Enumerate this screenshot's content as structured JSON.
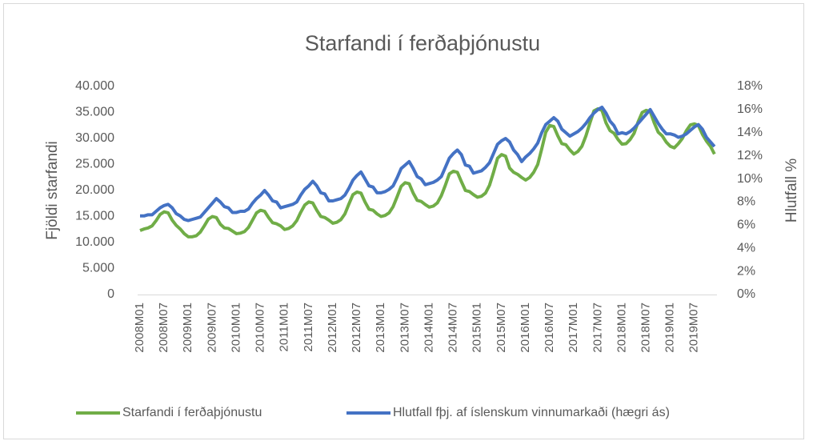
{
  "chart_data": {
    "type": "line",
    "title": "Starfandi í ferðaþjónustu",
    "y_label": "Fjöldi starfandi",
    "y2_label": "Hlutfall %",
    "categories": [
      "2008M01",
      null,
      null,
      null,
      null,
      null,
      "2008M07",
      null,
      null,
      null,
      null,
      null,
      "2009M01",
      null,
      null,
      null,
      null,
      null,
      "2009M07",
      null,
      null,
      null,
      null,
      null,
      "2010M01",
      null,
      null,
      null,
      null,
      null,
      "2010M07",
      null,
      null,
      null,
      null,
      null,
      "2011M01",
      null,
      null,
      null,
      null,
      null,
      "2011M07",
      null,
      null,
      null,
      null,
      null,
      "2012M01",
      null,
      null,
      null,
      null,
      null,
      "2012M07",
      null,
      null,
      null,
      null,
      null,
      "2013M01",
      null,
      null,
      null,
      null,
      null,
      "2013M07",
      null,
      null,
      null,
      null,
      null,
      "2014M01",
      null,
      null,
      null,
      null,
      null,
      "2014M07",
      null,
      null,
      null,
      null,
      null,
      "2015M01",
      null,
      null,
      null,
      null,
      null,
      "2015M07",
      null,
      null,
      null,
      null,
      null,
      "2016M01",
      null,
      null,
      null,
      null,
      null,
      "2016M07",
      null,
      null,
      null,
      null,
      null,
      "2017M01",
      null,
      null,
      null,
      null,
      null,
      "2017M07",
      null,
      null,
      null,
      null,
      null,
      "2018M01",
      null,
      null,
      null,
      null,
      null,
      "2018M07",
      null,
      null,
      null,
      null,
      null,
      "2019M01",
      null,
      null,
      null,
      null,
      null,
      "2019M07",
      null,
      null,
      null,
      null,
      null
    ],
    "series": [
      {
        "name": "Starfandi í ferðaþjónustu",
        "color": "#70ad47",
        "axis": "y",
        "values": [
          12300,
          12600,
          12800,
          13200,
          14200,
          15400,
          15900,
          15700,
          14300,
          13300,
          12600,
          11700,
          11100,
          11100,
          11300,
          12000,
          13200,
          14500,
          15000,
          14800,
          13500,
          12800,
          12700,
          12200,
          11700,
          11800,
          12100,
          12900,
          14300,
          15700,
          16200,
          16000,
          14800,
          13800,
          13600,
          13200,
          12500,
          12700,
          13200,
          14200,
          15800,
          17200,
          17800,
          17600,
          16200,
          15000,
          14800,
          14300,
          13700,
          13900,
          14400,
          15500,
          17400,
          19200,
          19700,
          19500,
          17800,
          16400,
          16200,
          15500,
          15000,
          15200,
          15700,
          16900,
          18800,
          20800,
          21500,
          21300,
          19500,
          18100,
          17900,
          17300,
          16800,
          17000,
          17600,
          19000,
          21000,
          23200,
          23700,
          23500,
          21700,
          20000,
          19800,
          19200,
          18700,
          18900,
          19500,
          21000,
          23500,
          26200,
          26900,
          26600,
          24300,
          23500,
          23100,
          22500,
          22000,
          22500,
          23500,
          25000,
          28000,
          31200,
          32500,
          32300,
          30500,
          29000,
          28800,
          27800,
          27000,
          27500,
          28500,
          30500,
          33000,
          35300,
          35700,
          35400,
          33000,
          31500,
          31000,
          29800,
          28900,
          29000,
          29800,
          31000,
          33200,
          35000,
          35400,
          35200,
          33000,
          31200,
          30500,
          29300,
          28500,
          28200,
          29000,
          30000,
          31500,
          32600,
          32800,
          32500,
          30800,
          29500,
          28500,
          27000
        ]
      },
      {
        "name": "Hlutfall fþj. af íslenskum vinnumarkaði (hægri ás)",
        "color": "#4472c4",
        "axis": "y2",
        "values": [
          6.8,
          6.8,
          6.9,
          6.9,
          7.2,
          7.5,
          7.7,
          7.8,
          7.5,
          7.0,
          6.8,
          6.5,
          6.4,
          6.5,
          6.6,
          6.7,
          7.1,
          7.5,
          7.9,
          8.3,
          8.0,
          7.6,
          7.5,
          7.1,
          7.1,
          7.2,
          7.2,
          7.4,
          7.9,
          8.3,
          8.6,
          9.0,
          8.6,
          8.1,
          8.0,
          7.5,
          7.6,
          7.7,
          7.8,
          8.0,
          8.6,
          9.1,
          9.4,
          9.8,
          9.4,
          8.8,
          8.7,
          8.1,
          8.1,
          8.2,
          8.3,
          8.6,
          9.2,
          9.9,
          10.3,
          10.6,
          10.0,
          9.4,
          9.3,
          8.8,
          8.8,
          8.9,
          9.1,
          9.4,
          10.1,
          10.9,
          11.2,
          11.5,
          10.9,
          10.2,
          10.0,
          9.5,
          9.6,
          9.7,
          9.9,
          10.2,
          11.0,
          11.8,
          12.2,
          12.5,
          12.1,
          11.2,
          11.1,
          10.5,
          10.6,
          10.7,
          11.0,
          11.4,
          12.2,
          13.0,
          13.3,
          13.5,
          13.2,
          12.5,
          12.1,
          11.5,
          11.9,
          12.2,
          12.6,
          13.1,
          14.0,
          14.7,
          15.0,
          15.3,
          15.0,
          14.3,
          14.0,
          13.7,
          13.9,
          14.1,
          14.4,
          14.8,
          15.3,
          15.7,
          16.0,
          16.2,
          15.7,
          15.0,
          14.6,
          13.9,
          14.0,
          13.9,
          14.1,
          14.4,
          14.8,
          15.2,
          15.6,
          16.0,
          15.4,
          14.8,
          14.3,
          13.9,
          13.9,
          13.8,
          13.6,
          13.7,
          13.9,
          14.2,
          14.5,
          14.7,
          14.3,
          13.6,
          13.2,
          12.8
        ]
      }
    ],
    "ylim": [
      0,
      40000
    ],
    "yticks": [
      0,
      {
        "value": 5000,
        "label": "5.000"
      },
      {
        "value": 10000,
        "label": "10.000"
      },
      {
        "value": 15000,
        "label": "15.000"
      },
      {
        "value": 20000,
        "label": "20.000"
      },
      {
        "value": 25000,
        "label": "25.000"
      },
      {
        "value": 30000,
        "label": "30.000"
      },
      {
        "value": 35000,
        "label": "35.000"
      },
      {
        "value": 40000,
        "label": "40.000"
      }
    ],
    "y2lim": [
      0,
      18
    ],
    "y2ticks": [
      {
        "value": 0,
        "label": "0%"
      },
      {
        "value": 2,
        "label": "2%"
      },
      {
        "value": 4,
        "label": "4%"
      },
      {
        "value": 6,
        "label": "6%"
      },
      {
        "value": 8,
        "label": "8%"
      },
      {
        "value": 10,
        "label": "10%"
      },
      {
        "value": 12,
        "label": "12%"
      },
      {
        "value": 14,
        "label": "14%"
      },
      {
        "value": 16,
        "label": "16%"
      },
      {
        "value": 18,
        "label": "18%"
      }
    ],
    "grid": false,
    "legend": "bottom"
  }
}
